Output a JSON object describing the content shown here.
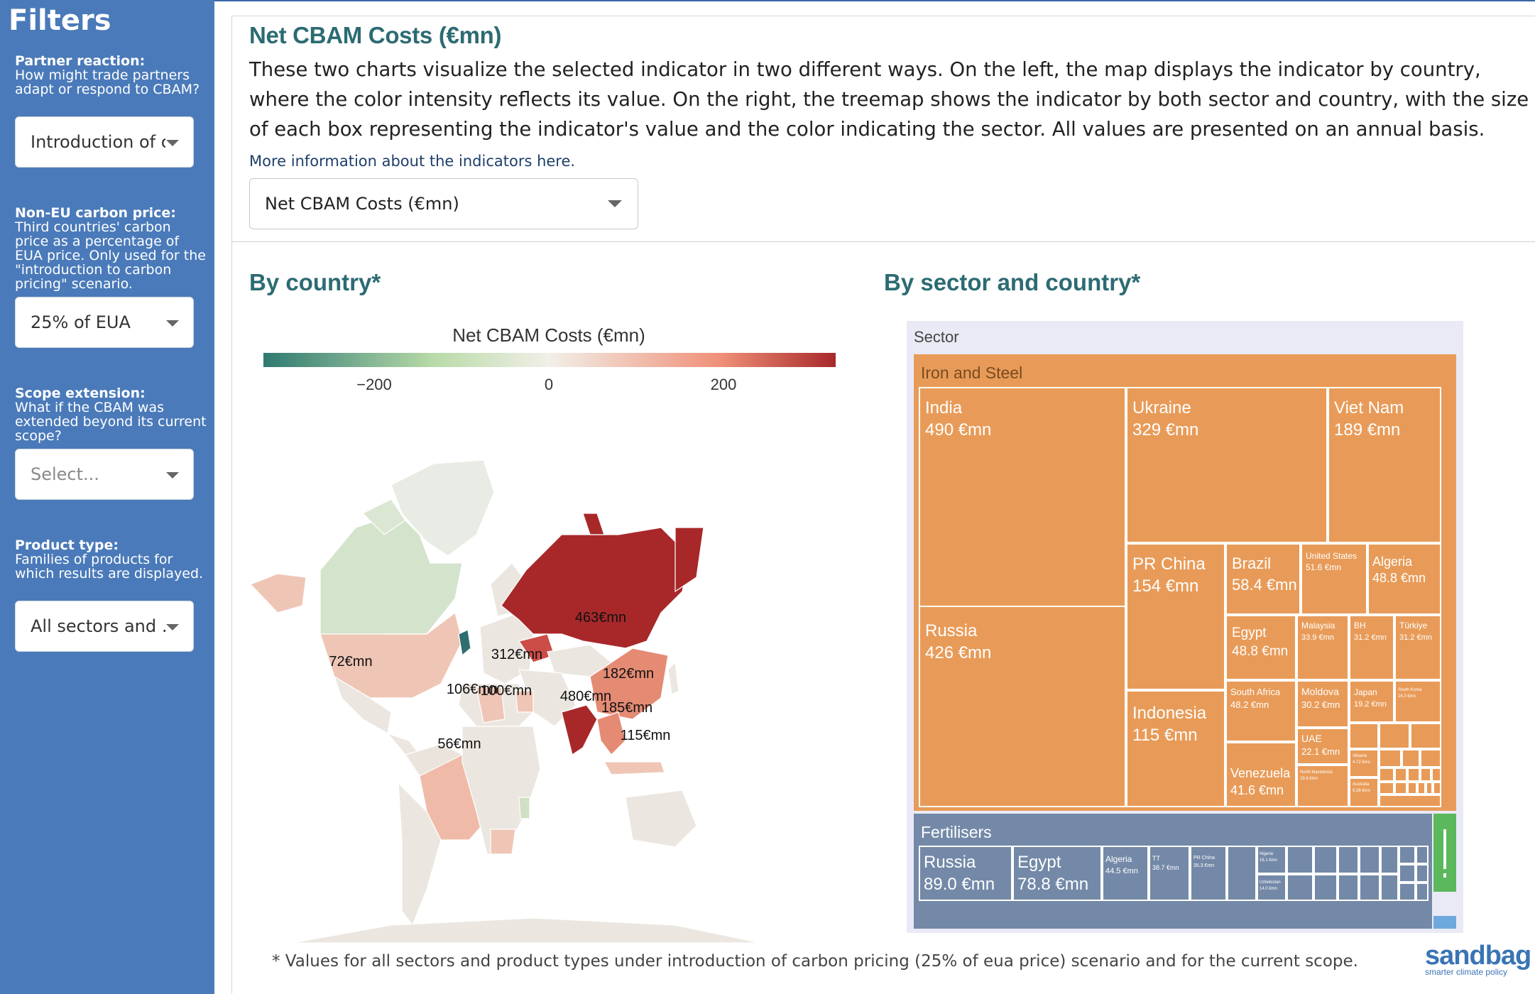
{
  "sidebar": {
    "title": "Filters",
    "filters": [
      {
        "label_bold": "Partner reaction:",
        "label": "How might trade partners adapt or respond to CBAM?",
        "value": "Introduction of c…"
      },
      {
        "label_bold": "Non-EU carbon price:",
        "label": "Third countries' carbon price as a percentage of EUA price. Only used for the \"introduction to carbon pricing\" scenario.",
        "value": "25% of EUA"
      },
      {
        "label_bold": "Scope extension:",
        "label": "What if the CBAM was extended beyond its current scope?",
        "placeholder": "Select..."
      },
      {
        "label_bold": "Product type:",
        "label": "Families of products for which results are displayed.",
        "value": "All sectors and …"
      }
    ]
  },
  "main": {
    "heading": "Net CBAM Costs (€mn)",
    "description": "These two charts visualize the selected indicator in two different ways. On the left, the map displays the indicator by country, where the color intensity reflects its value. On the right, the treemap shows the indicator by both sector and country, with the size of each box representing the indicator's value and the color indicating the sector. All values are presented on an annual basis.",
    "more_info": "More information about the indicators here.",
    "indicator_value": "Net CBAM Costs (€mn)",
    "by_country_title": "By country*",
    "by_sector_title": "By sector and country*",
    "footnote": "* Values for all sectors and product types under introduction of carbon pricing (25% of eua price) scenario and for the current scope.",
    "logo": "sandbag",
    "logo_tagline": "smarter climate policy"
  },
  "chart_data": [
    {
      "type": "map",
      "title": "Net CBAM Costs (€mn)",
      "colorbar": {
        "ticks": [
          "−200",
          "0",
          "200"
        ],
        "colors": [
          "#2f7a72",
          "#b9dba8",
          "#f2efe8",
          "#ef8f77",
          "#a8282a"
        ]
      },
      "labels": [
        {
          "country": "Russia",
          "label": "463€mn"
        },
        {
          "country": "Ukraine",
          "label": "312€mn"
        },
        {
          "country": "China",
          "label": "182€mn"
        },
        {
          "country": "United States",
          "label": "72€mn"
        },
        {
          "country": "Algeria",
          "label": "106€mn"
        },
        {
          "country": "Egypt",
          "label": "100€mn"
        },
        {
          "country": "India",
          "label": "480€mn"
        },
        {
          "country": "Viet Nam",
          "label": "185€mn"
        },
        {
          "country": "Indonesia",
          "label": "115€mn"
        },
        {
          "country": "Brazil",
          "label": "56€mn"
        }
      ]
    },
    {
      "type": "treemap",
      "root": "Sector",
      "sectors": [
        {
          "name": "Iron and Steel",
          "color": "#e89b58",
          "items": [
            {
              "name": "India",
              "value": "490 €mn"
            },
            {
              "name": "Ukraine",
              "value": "329 €mn"
            },
            {
              "name": "Viet Nam",
              "value": "189 €mn"
            },
            {
              "name": "Russia",
              "value": "426 €mn"
            },
            {
              "name": "PR China",
              "value": "154 €mn"
            },
            {
              "name": "Brazil",
              "value": "58.4 €mn"
            },
            {
              "name": "United States",
              "value": "51.6 €mn"
            },
            {
              "name": "Algeria",
              "value": "48.8 €mn"
            },
            {
              "name": "Egypt",
              "value": "48.8 €mn"
            },
            {
              "name": "Malaysia",
              "value": "33.9 €mn"
            },
            {
              "name": "BH",
              "value": "31.2 €mn"
            },
            {
              "name": "Türkiye",
              "value": "31.2 €mn"
            },
            {
              "name": "Indonesia",
              "value": "115 €mn"
            },
            {
              "name": "South Africa",
              "value": "48.2 €mn"
            },
            {
              "name": "Moldova",
              "value": "30.2 €mn"
            },
            {
              "name": "Japan",
              "value": "19.2 €mn"
            },
            {
              "name": "South Korea",
              "value": "16.3 €mn"
            },
            {
              "name": "Venezuela",
              "value": "41.6 €mn"
            },
            {
              "name": "UAE",
              "value": "22.1 €mn"
            },
            {
              "name": "North Macedonia",
              "value": "19.6 €mn"
            },
            {
              "name": "Albania",
              "value": "4.72 €mn"
            },
            {
              "name": "Australia",
              "value": "9.38 €mn"
            }
          ]
        },
        {
          "name": "Fertilisers",
          "color": "#7489a8",
          "items": [
            {
              "name": "Russia",
              "value": "89.0 €mn"
            },
            {
              "name": "Egypt",
              "value": "78.8 €mn"
            },
            {
              "name": "Algeria",
              "value": "44.5 €mn"
            },
            {
              "name": "TT",
              "value": "38.7 €mn"
            },
            {
              "name": "PR China",
              "value": "35.3 €mn"
            },
            {
              "name": "Nigeria",
              "value": "16.1 €mn"
            },
            {
              "name": "Uzbekistan",
              "value": "14.0 €mn"
            }
          ]
        }
      ]
    }
  ]
}
